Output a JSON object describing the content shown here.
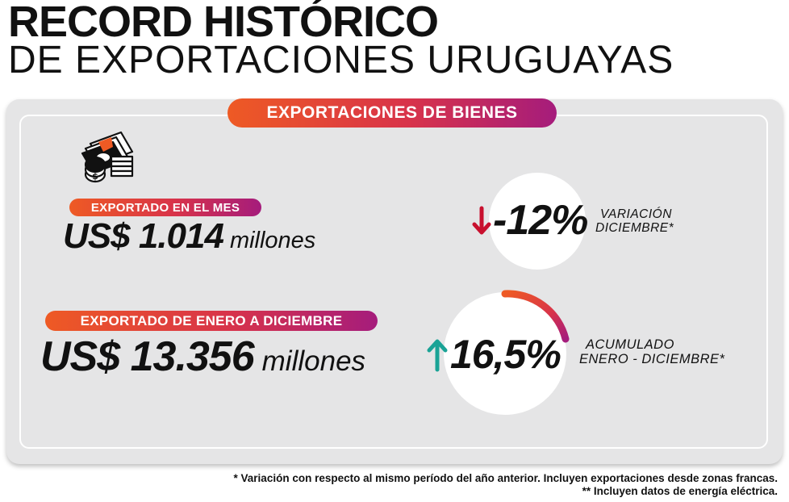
{
  "header": {
    "title_line1": "RECORD HISTÓRICO",
    "title_line2": "DE EXPORTACIONES URUGUAYAS"
  },
  "section": {
    "label": "EXPORTACIONES DE BIENES",
    "icon": "money-stack-icon"
  },
  "mes": {
    "label": "EXPORTADO EN EL MES",
    "amount": "US$ 1.014",
    "unit": "millones",
    "variation": "-12%",
    "variation_direction": "down",
    "variation_label_line1": "VARIACIÓN",
    "variation_label_line2": "DICIEMBRE*"
  },
  "anio": {
    "label": "EXPORTADO DE ENERO A DICIEMBRE",
    "amount": "US$ 13.356",
    "unit": "millones",
    "variation": "16,5%",
    "variation_direction": "up",
    "variation_label_line1": "ACUMULADO",
    "variation_label_line2": "ENERO - DICIEMBRE*"
  },
  "footnotes": {
    "note1": "* Variación con respecto al mismo período del año anterior. Incluyen exportaciones desde zonas francas.",
    "note2": "** Incluyen datos de energía eléctrica."
  },
  "colors": {
    "gradient_start": "#ee5a24",
    "gradient_end": "#a51c7c",
    "down_arrow": "#c8102e",
    "up_arrow": "#1aa396",
    "panel_bg": "#e5e5e6"
  }
}
